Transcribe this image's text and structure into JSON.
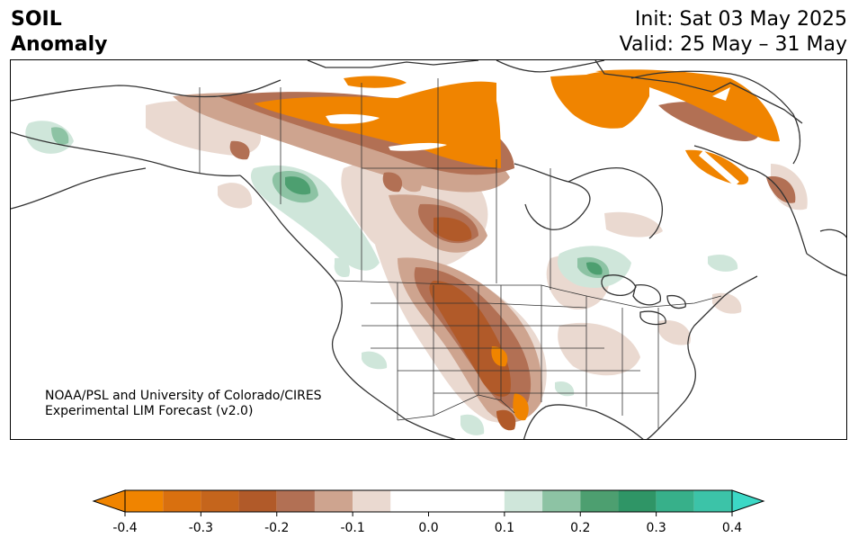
{
  "header": {
    "title_line1": "SOIL",
    "title_line2": "Anomaly",
    "init": "Init: Sat 03 May 2025",
    "valid": "Valid: 25 May – 31 May"
  },
  "credit": {
    "line1": "NOAA/PSL and University of Colorado/CIRES",
    "line2": "Experimental LIM Forecast (v2.0)"
  },
  "colorbar": {
    "levels": [
      -0.4,
      -0.35,
      -0.3,
      -0.25,
      -0.2,
      -0.15,
      -0.1,
      -0.05,
      0.05,
      0.1,
      0.15,
      0.2,
      0.25,
      0.3,
      0.35,
      0.4
    ],
    "colors": [
      "#f08400",
      "#d9700f",
      "#c5651c",
      "#b15a29",
      "#b27054",
      "#cea48f",
      "#ead9d0",
      "#ffffff",
      "#ffffff",
      "#cfe6da",
      "#8dc3a4",
      "#4d9f70",
      "#2f9566",
      "#37b08a",
      "#3cc3a8",
      "#3cd8c6"
    ],
    "extend_low": "#f08400",
    "extend_high": "#3cd8c6",
    "tick_labels": [
      "-0.4",
      "-0.3",
      "-0.2",
      "-0.1",
      "0.0",
      "0.1",
      "0.2",
      "0.3",
      "0.4"
    ]
  },
  "map": {
    "region": "North America",
    "projection": "Lambert conformal",
    "features": [
      "coastlines",
      "country borders",
      "state/province borders"
    ],
    "anomaly_colors": {
      "strong_dry": "#f08400",
      "dry": "#b15a29",
      "moderate_dry": "#b27054",
      "slight_dry": "#ead9d0",
      "slight_wet": "#cfe6da",
      "wet": "#4d9f70"
    }
  }
}
